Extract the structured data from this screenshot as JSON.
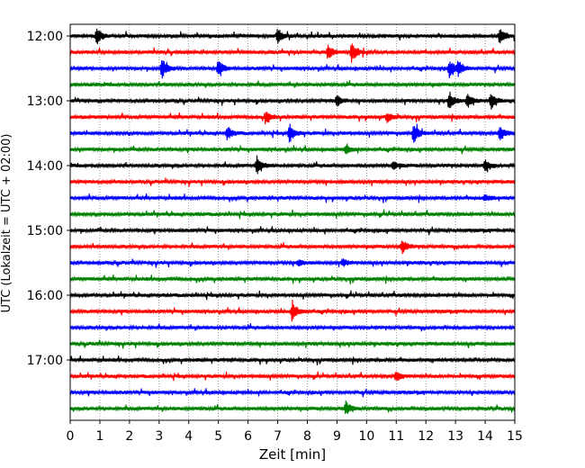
{
  "chart_data": {
    "type": "line",
    "subtype": "helicorder",
    "title": "",
    "xlabel": "Zeit  [min]",
    "ylabel": "UTC (Lokalzeit = UTC + 02:00)",
    "xlim": [
      0,
      15
    ],
    "x_ticks": [
      0,
      1,
      2,
      3,
      4,
      5,
      6,
      7,
      8,
      9,
      10,
      11,
      12,
      13,
      14,
      15
    ],
    "x_tick_labels": [
      "0",
      "1",
      "2",
      "3",
      "4",
      "5",
      "6",
      "7",
      "8",
      "9",
      "10",
      "11",
      "12",
      "13",
      "14",
      "15"
    ],
    "y_tick_labels": [
      "12:00",
      "13:00",
      "14:00",
      "15:00",
      "16:00",
      "17:00"
    ],
    "trace_minutes": 15,
    "grid": "vertical dotted lines at each minute",
    "trace_colors": [
      "#000000",
      "#ff0000",
      "#0000ff",
      "#008000"
    ],
    "traces": [
      {
        "start": "12:00",
        "color": "#000000",
        "events": [
          [
            0.9,
            1.0
          ],
          [
            7.0,
            0.9
          ],
          [
            14.5,
            1.0
          ]
        ]
      },
      {
        "start": "12:15",
        "color": "#ff0000",
        "events": [
          [
            8.7,
            0.9
          ],
          [
            9.5,
            1.2
          ]
        ]
      },
      {
        "start": "12:30",
        "color": "#0000ff",
        "events": [
          [
            3.1,
            1.2
          ],
          [
            5.0,
            1.0
          ],
          [
            12.8,
            1.1
          ],
          [
            13.1,
            0.9
          ]
        ]
      },
      {
        "start": "12:45",
        "color": "#008000",
        "events": []
      },
      {
        "start": "13:00",
        "color": "#000000",
        "events": [
          [
            9.0,
            0.7
          ],
          [
            12.8,
            1.0
          ],
          [
            13.4,
            0.9
          ],
          [
            14.2,
            0.9
          ]
        ]
      },
      {
        "start": "13:15",
        "color": "#ff0000",
        "events": [
          [
            6.6,
            0.8
          ],
          [
            10.7,
            0.6
          ]
        ]
      },
      {
        "start": "13:30",
        "color": "#0000ff",
        "events": [
          [
            5.3,
            0.8
          ],
          [
            7.4,
            1.1
          ],
          [
            11.6,
            1.2
          ],
          [
            14.5,
            0.9
          ]
        ]
      },
      {
        "start": "13:45",
        "color": "#008000",
        "events": [
          [
            9.3,
            0.5
          ]
        ]
      },
      {
        "start": "14:00",
        "color": "#000000",
        "events": [
          [
            6.3,
            1.0
          ],
          [
            10.9,
            0.5
          ],
          [
            14.0,
            0.7
          ]
        ]
      },
      {
        "start": "14:15",
        "color": "#ff0000",
        "events": []
      },
      {
        "start": "14:30",
        "color": "#0000ff",
        "events": [
          [
            14.0,
            0.4
          ]
        ]
      },
      {
        "start": "14:45",
        "color": "#008000",
        "events": []
      },
      {
        "start": "15:00",
        "color": "#000000",
        "events": []
      },
      {
        "start": "15:15",
        "color": "#ff0000",
        "events": [
          [
            11.2,
            0.8
          ]
        ]
      },
      {
        "start": "15:30",
        "color": "#0000ff",
        "events": [
          [
            7.7,
            0.4
          ],
          [
            9.2,
            0.4
          ]
        ]
      },
      {
        "start": "15:45",
        "color": "#008000",
        "events": []
      },
      {
        "start": "16:00",
        "color": "#000000",
        "events": []
      },
      {
        "start": "16:15",
        "color": "#ff0000",
        "events": [
          [
            7.5,
            1.2
          ]
        ]
      },
      {
        "start": "16:30",
        "color": "#0000ff",
        "events": []
      },
      {
        "start": "16:45",
        "color": "#008000",
        "events": []
      },
      {
        "start": "17:00",
        "color": "#000000",
        "events": []
      },
      {
        "start": "17:15",
        "color": "#ff0000",
        "events": [
          [
            11.0,
            0.6
          ]
        ]
      },
      {
        "start": "17:30",
        "color": "#0000ff",
        "events": []
      },
      {
        "start": "17:45",
        "color": "#008000",
        "events": [
          [
            9.3,
            0.8
          ]
        ]
      }
    ]
  }
}
